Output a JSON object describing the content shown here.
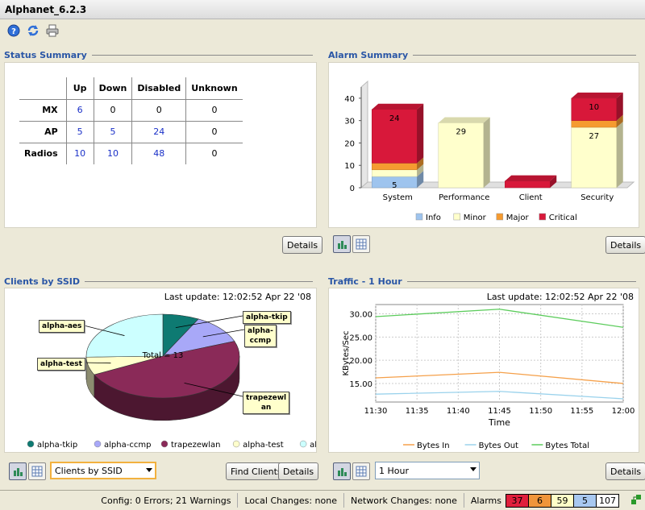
{
  "window": {
    "title": "Alphanet_6.2.3"
  },
  "toolbar": {
    "icons": [
      "help-icon",
      "refresh-icon",
      "print-icon"
    ]
  },
  "status_summary": {
    "title": "Status Summary",
    "columns": [
      "",
      "Up",
      "Down",
      "Disabled",
      "Unknown"
    ],
    "rows": [
      {
        "label": "MX",
        "up": "6",
        "down": "0",
        "disabled": "0",
        "unknown": "0"
      },
      {
        "label": "AP",
        "up": "5",
        "down": "5",
        "disabled": "24",
        "unknown": "0"
      },
      {
        "label": "Radios",
        "up": "10",
        "down": "10",
        "disabled": "48",
        "unknown": "0"
      }
    ],
    "details_label": "Details"
  },
  "alarm_summary": {
    "title": "Alarm Summary",
    "details_label": "Details"
  },
  "clients_by_ssid": {
    "title": "Clients by SSID",
    "last_update": "Last update: 12:02:52 Apr 22 '08",
    "total_label": "Total = 13",
    "selector_value": "Clients by SSID",
    "find_clients_label": "Find Clients",
    "details_label": "Details"
  },
  "traffic": {
    "title": "Traffic - 1 Hour",
    "last_update": "Last update: 12:02:52 Apr 22 '08",
    "selector_value": "1 Hour",
    "details_label": "Details"
  },
  "statusbar": {
    "config": "Config: 0 Errors; 21 Warnings",
    "local_changes": "Local Changes: none",
    "network_changes": "Network Changes: none",
    "alarms_label": "Alarms",
    "alarm_counts": [
      {
        "value": "37",
        "color": "#e0203c"
      },
      {
        "value": "6",
        "color": "#f0953a"
      },
      {
        "value": "59",
        "color": "#ffffc8"
      },
      {
        "value": "5",
        "color": "#a8c8f0"
      },
      {
        "value": "107",
        "color": "#ffffff"
      }
    ]
  },
  "chart_data": [
    {
      "type": "bar",
      "stacked": true,
      "categories": [
        "System",
        "Performance",
        "Client",
        "Security"
      ],
      "series": [
        {
          "name": "Info",
          "color": "#9ec4ee",
          "values": [
            5,
            0,
            0,
            0
          ]
        },
        {
          "name": "Minor",
          "color": "#ffffcc",
          "values": [
            3,
            29,
            0,
            27
          ]
        },
        {
          "name": "Major",
          "color": "#f59b30",
          "values": [
            3,
            0,
            0,
            3
          ]
        },
        {
          "name": "Critical",
          "color": "#d8183a",
          "values": [
            24,
            0,
            3,
            10
          ]
        }
      ],
      "data_labels": [
        {
          "category": "System",
          "series": "Info",
          "text": "5"
        },
        {
          "category": "System",
          "series": "Critical",
          "text": "24"
        },
        {
          "category": "Performance",
          "series": "Minor",
          "text": "29"
        },
        {
          "category": "Security",
          "series": "Minor",
          "text": "27"
        },
        {
          "category": "Security",
          "series": "Critical",
          "text": "10"
        }
      ],
      "ylim": [
        0,
        45
      ],
      "yticks": [
        "0",
        "10",
        "20",
        "30",
        "40"
      ],
      "legend": "bottom"
    },
    {
      "type": "pie",
      "slices": [
        {
          "label": "alpha-tkip",
          "value": 1,
          "color": "#0e7a72"
        },
        {
          "label": "alpha-ccmp",
          "value": 1.5,
          "color": "#a8a8f8"
        },
        {
          "label": "trapezewlan",
          "value": 6.3,
          "color": "#8a2a58"
        },
        {
          "label": "alpha-test",
          "value": 0.9,
          "color": "#ffffcc"
        },
        {
          "label": "alpha-aes",
          "value": 3.3,
          "color": "#ccffff"
        }
      ],
      "callouts": [
        "alpha-tkip",
        "alpha-\nccmp",
        "trapezewl\nan",
        "alpha-test",
        "alpha-aes"
      ],
      "legend": "bottom"
    },
    {
      "type": "line",
      "x": [
        "11:30",
        "11:35",
        "11:40",
        "11:45",
        "11:50",
        "11:55",
        "12:00"
      ],
      "x_minutes": [
        0,
        15,
        30
      ],
      "series": [
        {
          "name": "Bytes In",
          "color": "#f5a04a",
          "points": [
            [
              0,
              16.2
            ],
            [
              15,
              17.4
            ],
            [
              30,
              15.0
            ]
          ]
        },
        {
          "name": "Bytes Out",
          "color": "#9ad2ec",
          "points": [
            [
              0,
              12.7
            ],
            [
              15,
              13.3
            ],
            [
              30,
              11.7
            ]
          ]
        },
        {
          "name": "Bytes Total",
          "color": "#5ccc5c",
          "points": [
            [
              0,
              29.4
            ],
            [
              15,
              31.0
            ],
            [
              30,
              27.1
            ]
          ]
        }
      ],
      "xlabel": "Time",
      "ylabel": "KBytes/Sec",
      "yticks": [
        "15.00",
        "20.00",
        "25.00",
        "30.00"
      ],
      "ylim": [
        11,
        32
      ],
      "xlim": [
        0,
        30
      ],
      "grid": true,
      "legend": "bottom"
    }
  ]
}
